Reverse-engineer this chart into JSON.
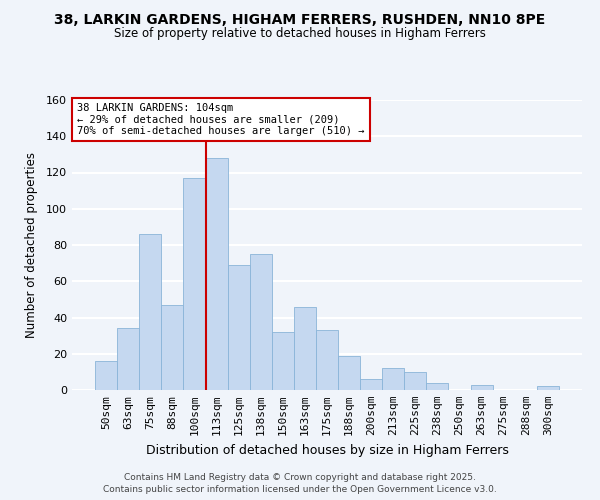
{
  "title": "38, LARKIN GARDENS, HIGHAM FERRERS, RUSHDEN, NN10 8PE",
  "subtitle": "Size of property relative to detached houses in Higham Ferrers",
  "xlabel": "Distribution of detached houses by size in Higham Ferrers",
  "ylabel": "Number of detached properties",
  "bar_color": "#c5d8f0",
  "bar_edge_color": "#8ab4d8",
  "background_color": "#f0f4fa",
  "grid_color": "white",
  "categories": [
    "50sqm",
    "63sqm",
    "75sqm",
    "88sqm",
    "100sqm",
    "113sqm",
    "125sqm",
    "138sqm",
    "150sqm",
    "163sqm",
    "175sqm",
    "188sqm",
    "200sqm",
    "213sqm",
    "225sqm",
    "238sqm",
    "250sqm",
    "263sqm",
    "275sqm",
    "288sqm",
    "300sqm"
  ],
  "values": [
    16,
    34,
    86,
    47,
    117,
    128,
    69,
    75,
    32,
    46,
    33,
    19,
    6,
    12,
    10,
    4,
    0,
    3,
    0,
    0,
    2
  ],
  "ylim": [
    0,
    160
  ],
  "yticks": [
    0,
    20,
    40,
    60,
    80,
    100,
    120,
    140,
    160
  ],
  "vline_x": 4.5,
  "vline_color": "#cc0000",
  "annotation_title": "38 LARKIN GARDENS: 104sqm",
  "annotation_line1": "← 29% of detached houses are smaller (209)",
  "annotation_line2": "70% of semi-detached houses are larger (510) →",
  "annotation_box_color": "white",
  "annotation_box_edge": "#cc0000",
  "footer1": "Contains HM Land Registry data © Crown copyright and database right 2025.",
  "footer2": "Contains public sector information licensed under the Open Government Licence v3.0."
}
